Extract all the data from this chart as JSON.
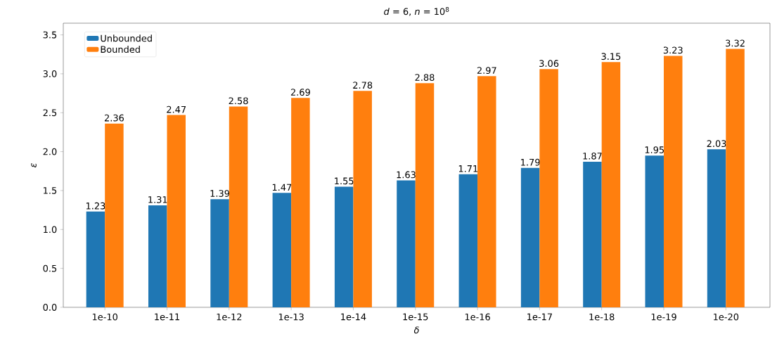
{
  "chart_data": {
    "type": "bar",
    "title": "*d* = 6, *n* = 10$^{8}$",
    "xlabel": "δ",
    "ylabel": "ε",
    "categories": [
      "1e-10",
      "1e-11",
      "1e-12",
      "1e-13",
      "1e-14",
      "1e-15",
      "1e-16",
      "1e-17",
      "1e-18",
      "1e-19",
      "1e-20"
    ],
    "series": [
      {
        "name": "Unbounded",
        "color": "#1f77b4",
        "values": [
          1.23,
          1.31,
          1.39,
          1.47,
          1.55,
          1.63,
          1.71,
          1.79,
          1.87,
          1.95,
          2.03
        ]
      },
      {
        "name": "Bounded",
        "color": "#ff7f0e",
        "values": [
          2.36,
          2.47,
          2.58,
          2.69,
          2.78,
          2.88,
          2.97,
          3.06,
          3.15,
          3.23,
          3.32
        ]
      }
    ],
    "ylim": [
      0,
      3.65
    ],
    "yticks": [
      {
        "value": 0,
        "label": "0.0"
      },
      0.5,
      {
        "value": 1,
        "label": "1.0"
      },
      1.5,
      {
        "value": 2,
        "label": "2.0"
      },
      2.5,
      {
        "value": 3,
        "label": "3.0"
      },
      3.5
    ],
    "data_labels": true,
    "legend": "top left",
    "grid": false
  }
}
